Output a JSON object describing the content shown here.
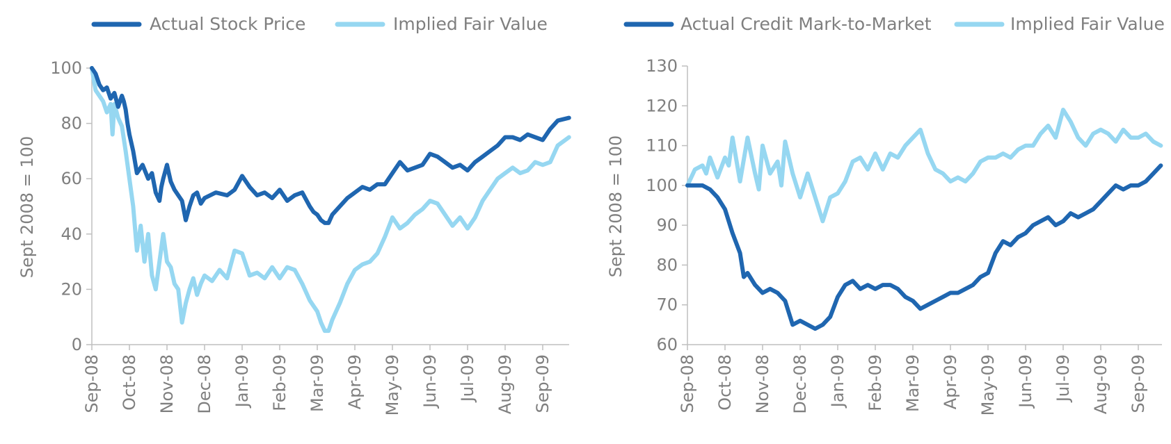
{
  "colors": {
    "dark_series": "#1f66b0",
    "light_series": "#96d7f1",
    "axis": "#bfbfbf",
    "text": "#7f7f7f"
  },
  "chart_data": [
    {
      "type": "line",
      "title": "",
      "xlabel": "",
      "ylabel": "Sept 2008 = 100",
      "ylim": [
        0,
        100
      ],
      "yticks": [
        0,
        20,
        40,
        60,
        80,
        100
      ],
      "xticks": [
        "Sep-08",
        "Oct-08",
        "Nov-08",
        "Dec-08",
        "Jan-09",
        "Feb-09",
        "Mar-09",
        "Apr-09",
        "May-09",
        "Jun-09",
        "Jul-09",
        "Aug-09",
        "Sep-09"
      ],
      "grid": false,
      "legend": "top",
      "series": [
        {
          "name": "Actual Stock Price",
          "color": "#1f66b0",
          "x": [
            0,
            0.1,
            0.2,
            0.3,
            0.4,
            0.5,
            0.6,
            0.7,
            0.8,
            0.85,
            0.9,
            0.95,
            1.0,
            1.1,
            1.2,
            1.35,
            1.5,
            1.6,
            1.7,
            1.8,
            1.85,
            1.9,
            2.0,
            2.1,
            2.2,
            2.4,
            2.5,
            2.6,
            2.7,
            2.8,
            2.9,
            3.0,
            3.3,
            3.6,
            3.8,
            4.0,
            4.2,
            4.4,
            4.6,
            4.8,
            5.0,
            5.2,
            5.4,
            5.6,
            5.8,
            5.9,
            6.0,
            6.1,
            6.2,
            6.3,
            6.4,
            6.6,
            6.8,
            7.0,
            7.2,
            7.4,
            7.6,
            7.8,
            8.0,
            8.2,
            8.4,
            8.6,
            8.8,
            9.0,
            9.2,
            9.4,
            9.6,
            9.8,
            10.0,
            10.2,
            10.4,
            10.6,
            10.8,
            11.0,
            11.2,
            11.4,
            11.6,
            11.8,
            12.0,
            12.2,
            12.4,
            12.7
          ],
          "y": [
            100,
            98,
            94,
            92,
            93,
            89,
            91,
            86,
            90,
            88,
            85,
            80,
            76,
            70,
            62,
            65,
            60,
            62,
            55,
            52,
            57,
            60,
            65,
            59,
            56,
            52,
            45,
            50,
            54,
            55,
            51,
            53,
            55,
            54,
            56,
            61,
            57,
            54,
            55,
            53,
            56,
            52,
            54,
            55,
            50,
            48,
            47,
            45,
            44,
            44,
            47,
            50,
            53,
            55,
            57,
            56,
            58,
            58,
            62,
            66,
            63,
            64,
            65,
            69,
            68,
            66,
            64,
            65,
            63,
            66,
            68,
            70,
            72,
            75,
            75,
            74,
            76,
            75,
            74,
            78,
            81,
            82
          ]
        },
        {
          "name": "Implied Fair Value",
          "color": "#96d7f1",
          "x": [
            0,
            0.1,
            0.2,
            0.3,
            0.4,
            0.5,
            0.55,
            0.6,
            0.7,
            0.8,
            0.9,
            1.0,
            1.1,
            1.2,
            1.3,
            1.4,
            1.5,
            1.6,
            1.7,
            1.8,
            1.9,
            2.0,
            2.1,
            2.2,
            2.3,
            2.4,
            2.5,
            2.6,
            2.7,
            2.8,
            2.9,
            3.0,
            3.2,
            3.4,
            3.6,
            3.8,
            4.0,
            4.2,
            4.4,
            4.6,
            4.8,
            5.0,
            5.2,
            5.4,
            5.6,
            5.8,
            5.9,
            6.0,
            6.1,
            6.2,
            6.3,
            6.4,
            6.5,
            6.6,
            6.8,
            7.0,
            7.2,
            7.4,
            7.6,
            7.8,
            8.0,
            8.2,
            8.4,
            8.6,
            8.8,
            9.0,
            9.2,
            9.4,
            9.6,
            9.8,
            10.0,
            10.2,
            10.4,
            10.6,
            10.8,
            11.0,
            11.2,
            11.4,
            11.6,
            11.8,
            12.0,
            12.2,
            12.4,
            12.7
          ],
          "y": [
            100,
            92,
            90,
            88,
            84,
            87,
            76,
            87,
            82,
            79,
            70,
            60,
            50,
            34,
            43,
            30,
            40,
            25,
            20,
            30,
            40,
            30,
            28,
            22,
            20,
            8,
            15,
            20,
            24,
            18,
            22,
            25,
            23,
            27,
            24,
            34,
            33,
            25,
            26,
            24,
            28,
            24,
            28,
            27,
            22,
            16,
            14,
            12,
            8,
            5,
            5,
            9,
            12,
            15,
            22,
            27,
            29,
            30,
            33,
            39,
            46,
            42,
            44,
            47,
            49,
            52,
            51,
            47,
            43,
            46,
            42,
            46,
            52,
            56,
            60,
            62,
            64,
            62,
            63,
            66,
            65,
            66,
            72,
            75
          ]
        }
      ]
    },
    {
      "type": "line",
      "title": "",
      "xlabel": "",
      "ylabel": "Sept 2008 = 100",
      "ylim": [
        60,
        130
      ],
      "yticks": [
        60,
        70,
        80,
        90,
        100,
        110,
        120,
        130
      ],
      "xticks": [
        "Sep-08",
        "Oct-08",
        "Nov-08",
        "Dec-08",
        "Jan-09",
        "Feb-09",
        "Mar-09",
        "Apr-09",
        "May-09",
        "Jun-09",
        "Jul-09",
        "Aug-09",
        "Sep-09"
      ],
      "grid": false,
      "legend": "top",
      "series": [
        {
          "name": "Actual Credit Mark-to-Market",
          "color": "#1f66b0",
          "x": [
            0,
            0.2,
            0.4,
            0.6,
            0.8,
            1.0,
            1.2,
            1.4,
            1.5,
            1.6,
            1.8,
            2.0,
            2.2,
            2.4,
            2.6,
            2.8,
            3.0,
            3.2,
            3.4,
            3.6,
            3.8,
            4.0,
            4.2,
            4.4,
            4.6,
            4.8,
            5.0,
            5.2,
            5.4,
            5.6,
            5.8,
            6.0,
            6.2,
            6.4,
            6.6,
            6.8,
            7.0,
            7.2,
            7.4,
            7.6,
            7.8,
            8.0,
            8.2,
            8.4,
            8.6,
            8.8,
            9.0,
            9.2,
            9.4,
            9.6,
            9.8,
            10.0,
            10.2,
            10.4,
            10.6,
            10.8,
            11.0,
            11.2,
            11.4,
            11.6,
            11.8,
            12.0,
            12.2,
            12.4,
            12.6
          ],
          "y": [
            100,
            100,
            100,
            99,
            97,
            94,
            88,
            83,
            77,
            78,
            75,
            73,
            74,
            73,
            71,
            65,
            66,
            65,
            64,
            65,
            67,
            72,
            75,
            76,
            74,
            75,
            74,
            75,
            75,
            74,
            72,
            71,
            69,
            70,
            71,
            72,
            73,
            73,
            74,
            75,
            77,
            78,
            83,
            86,
            85,
            87,
            88,
            90,
            91,
            92,
            90,
            91,
            93,
            92,
            93,
            94,
            96,
            98,
            100,
            99,
            100,
            100,
            101,
            103,
            105
          ]
        },
        {
          "name": "Implied Fair Value",
          "color": "#96d7f1",
          "x": [
            0,
            0.2,
            0.4,
            0.5,
            0.6,
            0.8,
            1.0,
            1.1,
            1.2,
            1.4,
            1.6,
            1.8,
            1.9,
            2.0,
            2.2,
            2.4,
            2.5,
            2.6,
            2.8,
            3.0,
            3.2,
            3.4,
            3.6,
            3.8,
            4.0,
            4.2,
            4.4,
            4.6,
            4.8,
            5.0,
            5.2,
            5.4,
            5.6,
            5.8,
            6.0,
            6.2,
            6.4,
            6.6,
            6.8,
            7.0,
            7.2,
            7.4,
            7.6,
            7.8,
            8.0,
            8.2,
            8.4,
            8.6,
            8.8,
            9.0,
            9.2,
            9.4,
            9.6,
            9.8,
            10.0,
            10.2,
            10.4,
            10.6,
            10.8,
            11.0,
            11.2,
            11.4,
            11.6,
            11.8,
            12.0,
            12.2,
            12.4,
            12.6
          ],
          "y": [
            100,
            104,
            105,
            103,
            107,
            102,
            107,
            105,
            112,
            101,
            112,
            103,
            99,
            110,
            103,
            106,
            100,
            111,
            103,
            97,
            103,
            97,
            91,
            97,
            98,
            101,
            106,
            107,
            104,
            108,
            104,
            108,
            107,
            110,
            112,
            114,
            108,
            104,
            103,
            101,
            102,
            101,
            103,
            106,
            107,
            107,
            108,
            107,
            109,
            110,
            110,
            113,
            115,
            112,
            119,
            116,
            112,
            110,
            113,
            114,
            113,
            111,
            114,
            112,
            112,
            113,
            111,
            110
          ]
        }
      ]
    }
  ]
}
